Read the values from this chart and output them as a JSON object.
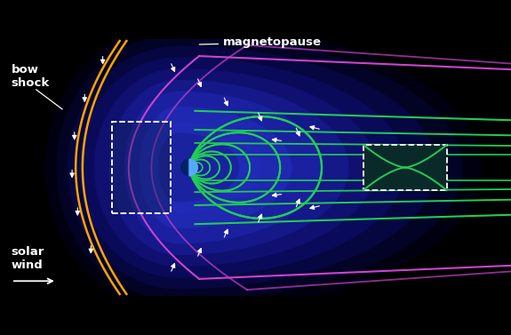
{
  "bg_color": "#000000",
  "bow_shock_color": "#FFA500",
  "magnetopause_color": "#CC44CC",
  "field_line_color": "#22CC55",
  "arrow_color": "#ffffff",
  "earth_day_color": "#55aaff",
  "earth_night_color": "#002266",
  "label_color": "#ffffff",
  "grad_layers": [
    {
      "color": "#000010",
      "sx_l": 3.5,
      "sx_r": 8.0,
      "sy": 3.8
    },
    {
      "color": "#030325",
      "sx_l": 3.2,
      "sx_r": 7.5,
      "sy": 3.5
    },
    {
      "color": "#060640",
      "sx_l": 2.9,
      "sx_r": 6.8,
      "sy": 3.2
    },
    {
      "color": "#0a0a5a",
      "sx_l": 2.6,
      "sx_r": 6.0,
      "sy": 2.9
    },
    {
      "color": "#0f1070",
      "sx_l": 2.2,
      "sx_r": 5.2,
      "sy": 2.6
    },
    {
      "color": "#141888",
      "sx_l": 1.8,
      "sx_r": 4.5,
      "sy": 2.3
    },
    {
      "color": "#1a20a0",
      "sx_l": 1.4,
      "sx_r": 3.8,
      "sy": 2.0
    },
    {
      "color": "#1e28b0",
      "sx_l": 1.0,
      "sx_r": 3.0,
      "sy": 1.6
    },
    {
      "color": "#202ab5",
      "sx_l": 0.7,
      "sx_r": 2.2,
      "sy": 1.2
    },
    {
      "color": "#1a22a0",
      "sx_l": 0.5,
      "sx_r": 1.6,
      "sy": 0.9
    }
  ],
  "xlim": [
    -5.0,
    8.5
  ],
  "ylim": [
    -3.4,
    3.4
  ]
}
